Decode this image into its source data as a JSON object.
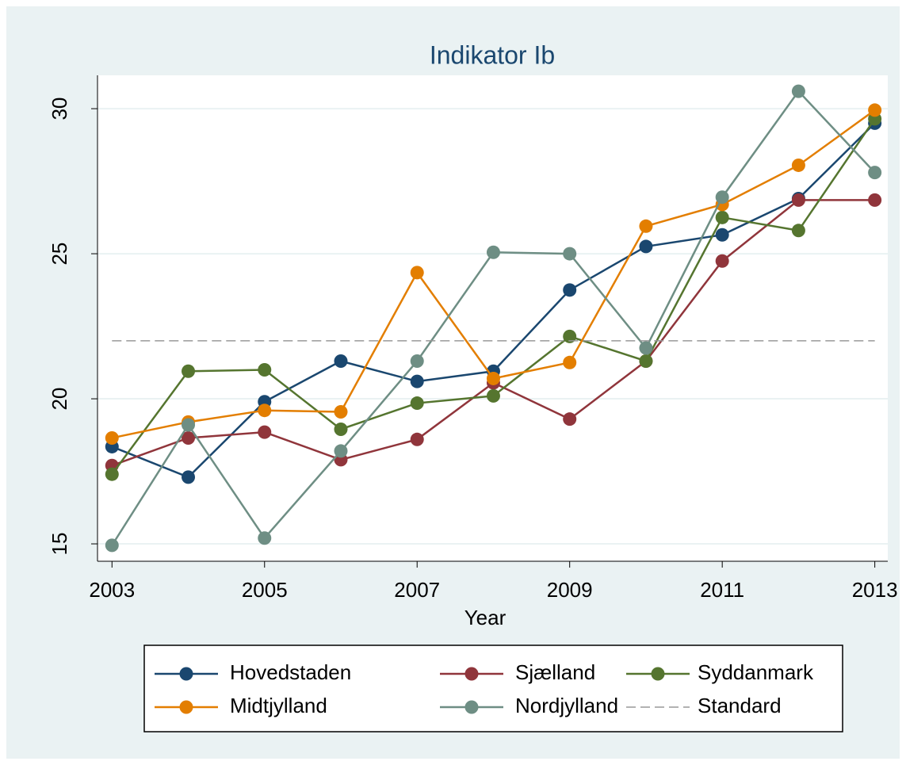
{
  "chart_data": {
    "type": "line",
    "title": "Indikator Ib",
    "x_label": "Year",
    "x": [
      2003,
      2004,
      2005,
      2006,
      2007,
      2008,
      2009,
      2010,
      2011,
      2012,
      2013
    ],
    "xlim": [
      2002.81,
      2013.17
    ],
    "xticks": [
      2003,
      2005,
      2007,
      2009,
      2011,
      2013
    ],
    "ylim": [
      14.4,
      31.15
    ],
    "yticks": [
      15,
      20,
      25,
      30
    ],
    "grid": true,
    "legend": "bottom",
    "series": [
      {
        "name": "Hovedstaden",
        "color": "#1a476f",
        "values": [
          18.35,
          17.3,
          19.9,
          21.3,
          20.6,
          20.95,
          23.75,
          25.25,
          25.65,
          26.9,
          29.5
        ]
      },
      {
        "name": "Sjælland",
        "color": "#90353b",
        "values": [
          17.7,
          18.65,
          18.85,
          17.9,
          18.6,
          20.55,
          19.3,
          21.3,
          24.75,
          26.85,
          26.85
        ]
      },
      {
        "name": "Syddanmark",
        "color": "#55752f",
        "values": [
          17.4,
          20.95,
          21.0,
          18.95,
          19.85,
          20.1,
          22.15,
          21.3,
          26.25,
          25.8,
          29.65
        ]
      },
      {
        "name": "Midtjylland",
        "color": "#e37e00",
        "values": [
          18.65,
          19.2,
          19.6,
          19.55,
          24.35,
          20.7,
          21.25,
          25.95,
          26.7,
          28.05,
          29.95
        ]
      },
      {
        "name": "Nordjylland",
        "color": "#6e8e84",
        "values": [
          14.95,
          19.1,
          15.2,
          18.2,
          21.3,
          25.05,
          25.0,
          21.75,
          26.95,
          30.6,
          27.8
        ]
      },
      {
        "name": "Standard",
        "color": "#999999",
        "dashed": true,
        "values": [
          22,
          22,
          22,
          22,
          22,
          22,
          22,
          22,
          22,
          22,
          22
        ]
      }
    ]
  }
}
